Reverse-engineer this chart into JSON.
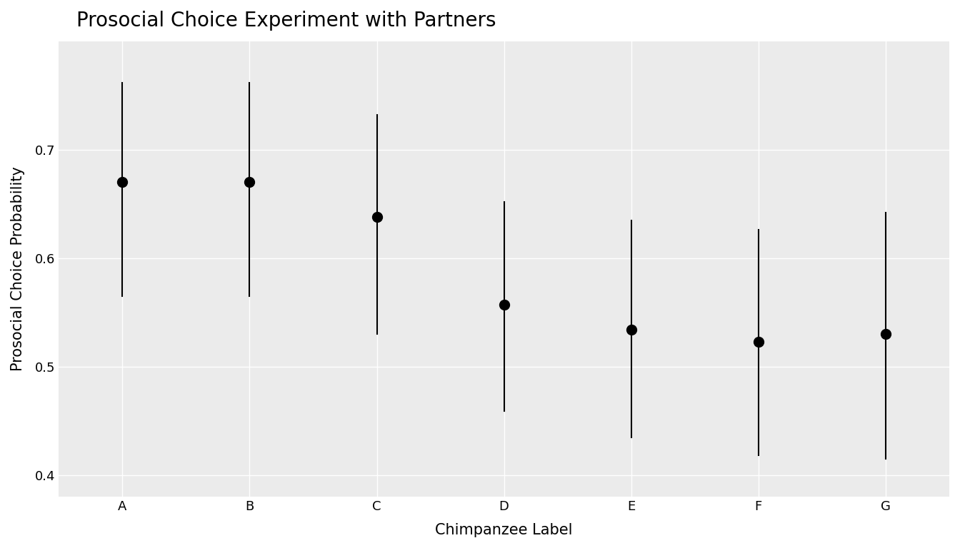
{
  "title": "Prosocial Choice Experiment with Partners",
  "xlabel": "Chimpanzee Label",
  "ylabel": "Prosocial Choice Probability",
  "categories": [
    "A",
    "B",
    "C",
    "D",
    "E",
    "F",
    "G"
  ],
  "mle": [
    0.67,
    0.67,
    0.638,
    0.557,
    0.534,
    0.523,
    0.53
  ],
  "ci_lower": [
    0.565,
    0.565,
    0.53,
    0.459,
    0.435,
    0.418,
    0.415
  ],
  "ci_upper": [
    0.762,
    0.762,
    0.732,
    0.652,
    0.635,
    0.626,
    0.642
  ],
  "ylim": [
    0.38,
    0.8
  ],
  "yticks": [
    0.4,
    0.5,
    0.6,
    0.7
  ],
  "point_size": 100,
  "point_color": "#000000",
  "line_color": "#000000",
  "line_width": 1.5,
  "figure_background": "#ffffff",
  "panel_background": "#ebebeb",
  "grid_color": "#ffffff",
  "title_fontsize": 20,
  "label_fontsize": 15,
  "tick_fontsize": 13
}
